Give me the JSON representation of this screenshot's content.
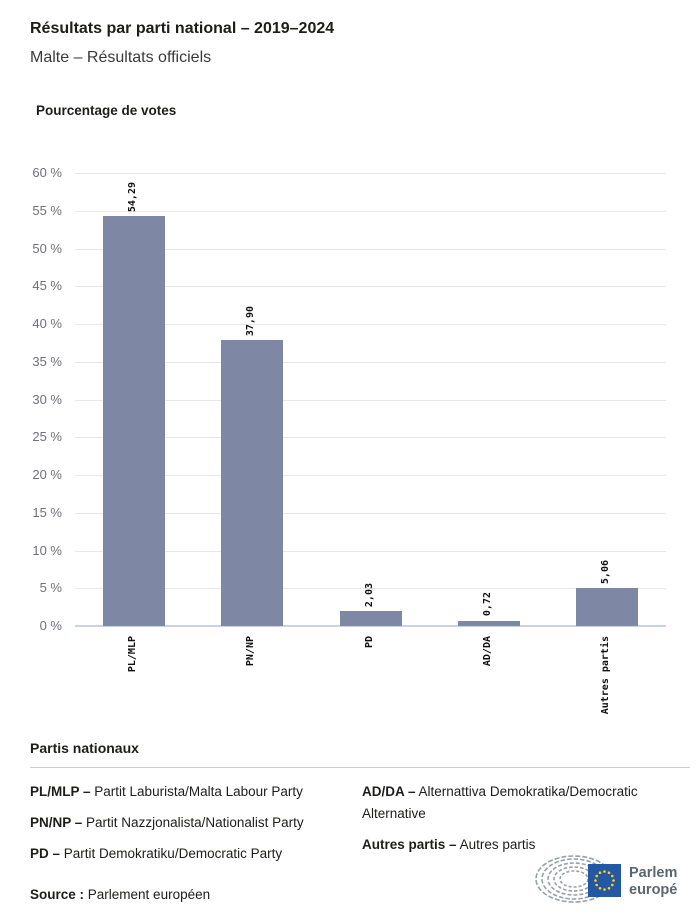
{
  "header": {
    "title": "Résultats par parti national – 2019–2024",
    "subtitle": "Malte – Résultats officiels"
  },
  "chart": {
    "axis_title": "Pourcentage de votes"
  },
  "chart_data": {
    "type": "bar",
    "title": "Pourcentage de votes",
    "categories": [
      "PL/MLP",
      "PN/NP",
      "PD",
      "AD/DA",
      "Autres partis"
    ],
    "values": [
      54.29,
      37.9,
      2.03,
      0.72,
      5.06
    ],
    "value_labels": [
      "54,29",
      "37,90",
      "2,03",
      "0,72",
      "5,06"
    ],
    "xlabel": "",
    "ylabel": "Pourcentage de votes",
    "ylim": [
      0,
      60
    ],
    "ytick_step": 5,
    "ytick_suffix": " %",
    "grid": true,
    "legend_position": "none",
    "colors": {
      "bar": "#7E88A4",
      "zero_axis_line": "#C9D2E8",
      "gridline": "#E6E6EB",
      "tick_label": "#6F6F78",
      "value_label": "#111111"
    }
  },
  "legend": {
    "title": "Partis nationaux",
    "items": [
      {
        "abbr": "PL/MLP –",
        "name": "Partit Laburista/Malta Labour Party"
      },
      {
        "abbr": "PN/NP –",
        "name": "Partit Nazzjonalista/Nationalist Party"
      },
      {
        "abbr": "PD –",
        "name": "Partit Demokratiku/Democratic Party"
      },
      {
        "abbr": "AD/DA –",
        "name": "Alternattiva Demokratika/Democratic Alternative"
      },
      {
        "abbr": "Autres partis –",
        "name": "Autres partis"
      }
    ]
  },
  "footer": {
    "source_label": "Source :",
    "source_value": "Parlement européen",
    "logo": {
      "line1": "Parlement",
      "line2": "européen",
      "blue": "#2457A4",
      "star_yellow": "#FFD617",
      "text_color": "#5C666D",
      "hemicycle_color": "#99A0A6"
    }
  }
}
